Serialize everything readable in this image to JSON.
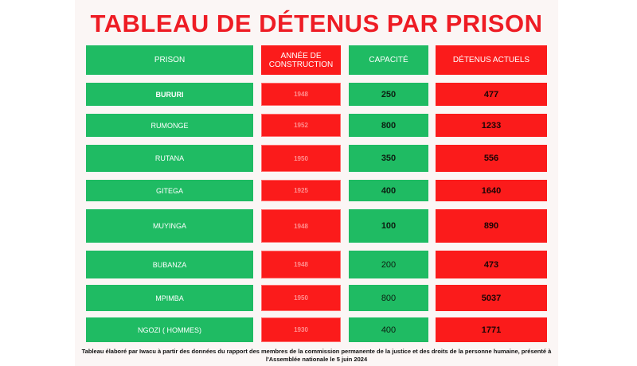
{
  "title": "TABLEAU DE DÉTENUS PAR PRISON",
  "headers": {
    "prison": "PRISON",
    "annee": "ANNÉE DE CONSTRUCTION",
    "capacite": "CAPACITÉ",
    "detenus": "DÉTENUS ACTUELS"
  },
  "rows": [
    {
      "prison": "BURURI",
      "annee": "1948",
      "capacite": "250",
      "detenus": "477"
    },
    {
      "prison": "RUMONGE",
      "annee": "1952",
      "capacite": "800",
      "detenus": "1233"
    },
    {
      "prison": "RUTANA",
      "annee": "1950",
      "capacite": "350",
      "detenus": "556"
    },
    {
      "prison": "GITEGA",
      "annee": "1925",
      "capacite": "400",
      "detenus": "1640"
    },
    {
      "prison": "MUYINGA",
      "annee": "1948",
      "capacite": "100",
      "detenus": "890"
    },
    {
      "prison": "BUBANZA",
      "annee": "1948",
      "capacite": "200",
      "detenus": "473"
    },
    {
      "prison": "MPIMBA",
      "annee": "1950",
      "capacite": "800",
      "detenus": "5037"
    },
    {
      "prison": "NGOZI ( HOMMES)",
      "annee": "1930",
      "capacite": "400",
      "detenus": "1771"
    }
  ],
  "footnote": "Tableau élaboré par Iwacu à partir des données du rapport des membres de la commission permanente de la justice et des droits de la personne humaine, présenté à l'Assemblée nationale le 5 juin 2024",
  "colors": {
    "title": "#ee1c24",
    "green": "#1fbb63",
    "red": "#fb1b1b"
  }
}
